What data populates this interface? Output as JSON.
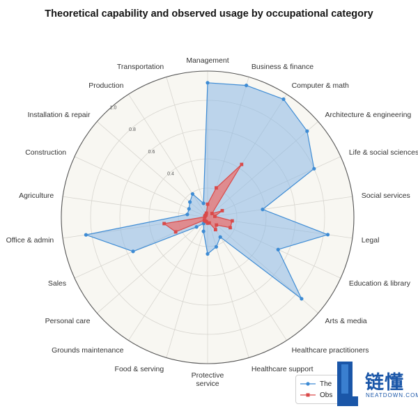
{
  "title": "Theoretical capability and observed usage by occupational category",
  "chart_data": {
    "type": "radar",
    "categories": [
      "Management",
      "Business & finance",
      "Computer & math",
      "Architecture & engineering",
      "Life & social sciences",
      "Social services",
      "Legal",
      "Education & library",
      "Arts & media",
      "Healthcare practitioners",
      "Healthcare support",
      "Protective service",
      "Food & serving",
      "Grounds maintenance",
      "Personal care",
      "Sales",
      "Office & admin",
      "Agriculture",
      "Construction",
      "Installation & repair",
      "Production",
      "Transportation"
    ],
    "series": [
      {
        "name": "The",
        "color": "#3d8bd4",
        "fill": "#8ab8e5",
        "marker": "circle",
        "values": [
          0.92,
          0.94,
          0.96,
          0.9,
          0.8,
          0.38,
          0.83,
          0.53,
          0.85,
          0.16,
          0.21,
          0.25,
          0.1,
          0.05,
          0.1,
          0.56,
          0.84,
          0.14,
          0.14,
          0.16,
          0.19,
          0.1
        ]
      },
      {
        "name": "Obs",
        "color": "#d94a4a",
        "fill": "#e77878",
        "marker": "square",
        "values": [
          0.09,
          0.21,
          0.43,
          0.04,
          0.11,
          0.05,
          0.17,
          0.17,
          0.08,
          0.1,
          0.04,
          0.04,
          0.03,
          0.03,
          0.03,
          0.24,
          0.3,
          0.02,
          0.02,
          0.02,
          0.02,
          0.03
        ]
      }
    ],
    "rlim": [
      0,
      1.0
    ],
    "r_ticks": [
      "0.4",
      "0.6",
      "0.8",
      "1.0"
    ],
    "grid": true,
    "legend_position": "bottom-right"
  },
  "legend": {
    "items": [
      {
        "label": "The",
        "color": "#3d8bd4",
        "marker": "circle"
      },
      {
        "label": "Obs",
        "color": "#d94a4a",
        "marker": "square"
      }
    ]
  },
  "watermark": {
    "text": "链懂",
    "subtext": "NEATDOWN.COM",
    "color": "#1a56a8"
  }
}
